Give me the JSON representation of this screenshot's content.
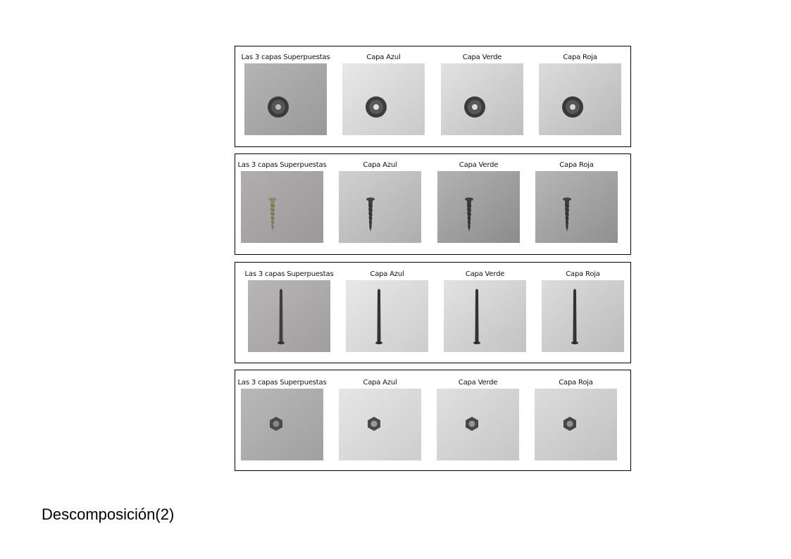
{
  "slide_title": "Descomposición(2)",
  "rows": [
    {
      "object": "washer",
      "captions": [
        "Las 3 capas Superpuestas",
        "Capa Azul",
        "Capa Verde",
        "Capa Roja"
      ],
      "backgrounds": [
        "#a9a8a8",
        "#dcdcdc",
        "#d4d4d4",
        "#cfcfcf"
      ]
    },
    {
      "object": "screw",
      "captions": [
        "Las 3 capas Superpuestas",
        "Capa Azul",
        "Capa Verde",
        "Capa Roja"
      ],
      "backgrounds": [
        "#a9a5a7",
        "#c2c2c2",
        "#a2a2a2",
        "#a6a6a6"
      ]
    },
    {
      "object": "nail",
      "captions": [
        "Las 3 capas Superpuestas",
        "Capa Azul",
        "Capa Verde",
        "Capa Roja"
      ],
      "backgrounds": [
        "#afadad",
        "#dddddd",
        "#d6d6d6",
        "#d0d0d0"
      ]
    },
    {
      "object": "nut",
      "captions": [
        "Las 3 capas Superpuestas",
        "Capa Azul",
        "Capa Verde",
        "Capa Roja"
      ],
      "backgrounds": [
        "#aeaeae",
        "#dcdcdc",
        "#d6d6d6",
        "#d2d2d2"
      ]
    }
  ]
}
